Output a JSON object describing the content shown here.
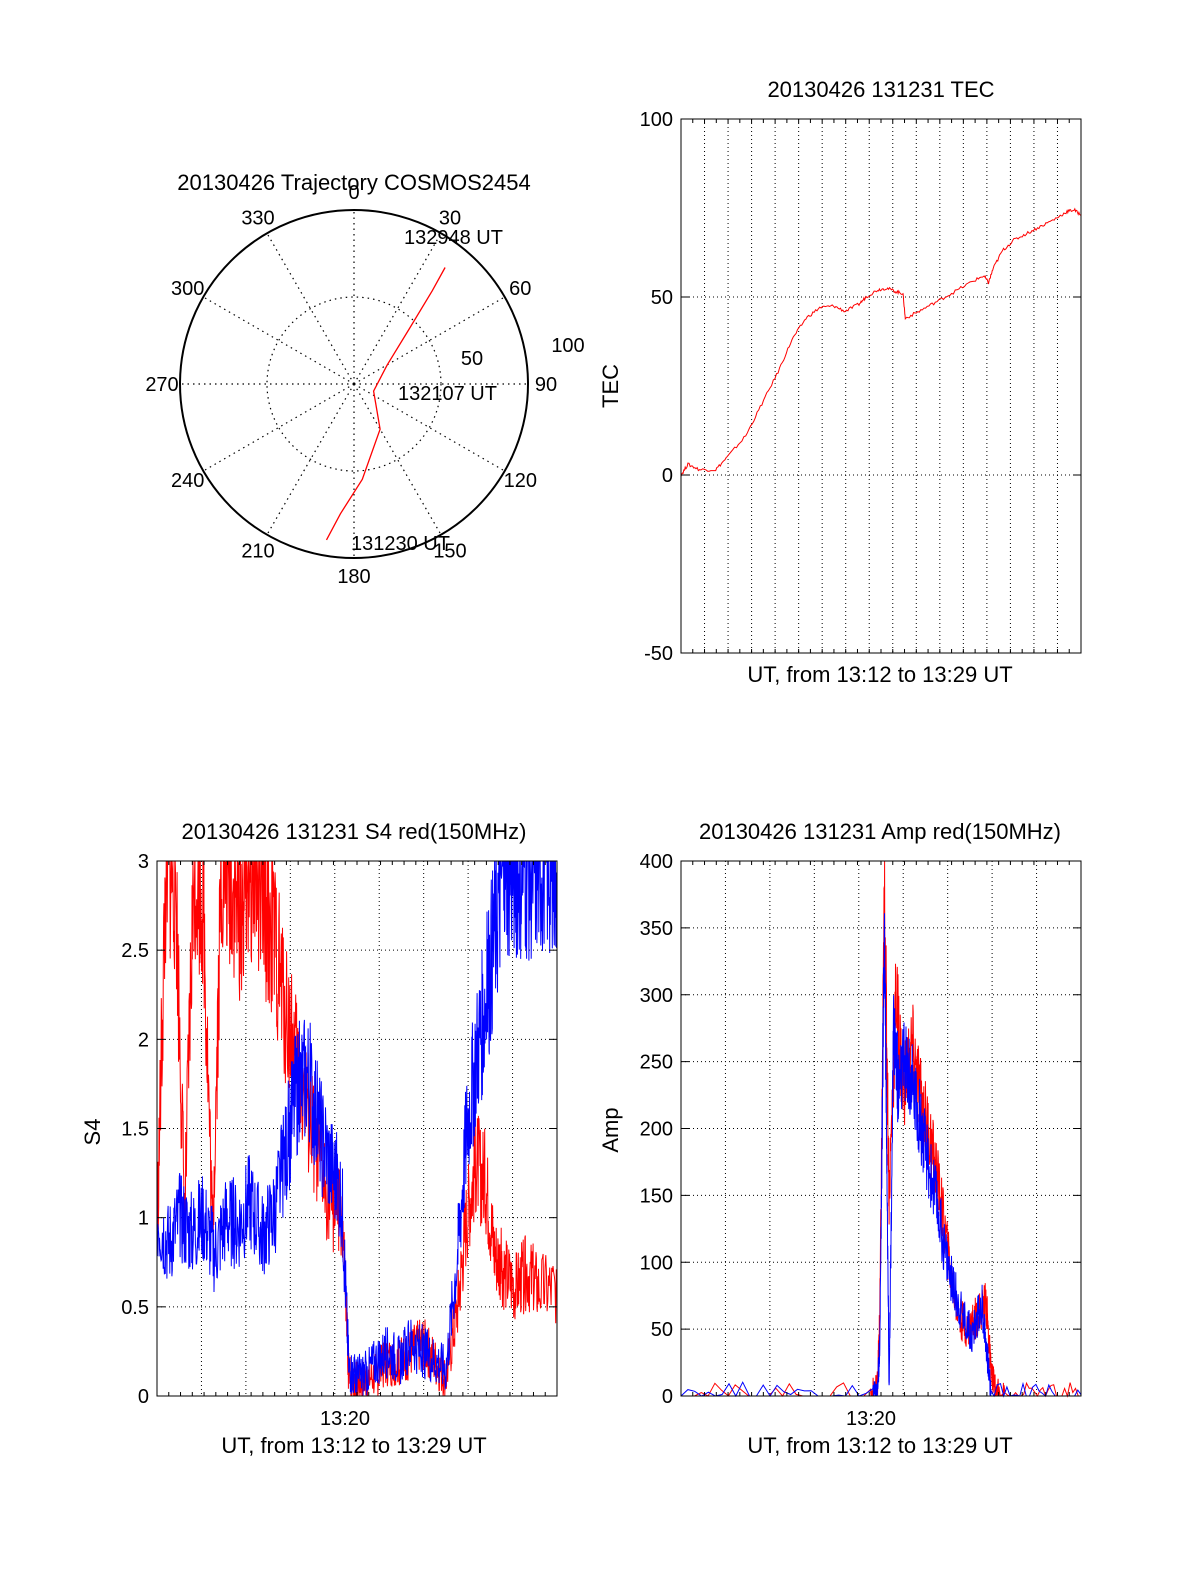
{
  "colors": {
    "red": "#ff0000",
    "blue": "#0000ff",
    "axis": "#000000",
    "grid": "#000000"
  },
  "chart_data": [
    {
      "id": "trajectory",
      "type": "polar",
      "title": "20130426 Trajectory COSMOS2454",
      "azimuth_labels": [
        "0",
        "30",
        "60",
        "90",
        "120",
        "150",
        "180",
        "210",
        "240",
        "270",
        "300",
        "330"
      ],
      "radius_labels": [
        "50",
        "100"
      ],
      "rlim": [
        0,
        100
      ],
      "grid": true,
      "series": [
        {
          "color": "#ff0000",
          "points": [
            [
              190,
              91
            ],
            [
              186,
              75
            ],
            [
              175,
              55
            ],
            [
              150,
              30
            ],
            [
              110,
              12
            ],
            [
              60,
              22
            ],
            [
              45,
              45
            ],
            [
              40,
              70
            ],
            [
              38,
              85
            ]
          ]
        }
      ],
      "annotations": [
        {
          "text": "132948 UT",
          "azimuth": 29,
          "radius": 84
        },
        {
          "text": "132107 UT",
          "azimuth": 84,
          "radius": 30
        },
        {
          "text": "131230 UT",
          "azimuth": 163,
          "radius": 96
        }
      ]
    },
    {
      "id": "tec",
      "type": "line",
      "title": "20130426 131231 TEC",
      "ylabel": "TEC",
      "xlabel": "UT, from 13:12 to 13:29 UT",
      "ylim": [
        -50,
        100
      ],
      "yticks": [
        "-50",
        "0",
        "50",
        "100"
      ],
      "xlim": [
        0,
        17.3
      ],
      "grid": true,
      "series": [
        {
          "color": "#ff0000",
          "x": [
            0,
            0.3,
            0.8,
            1.5,
            2.0,
            2.8,
            3.5,
            4.2,
            4.8,
            5.4,
            6.0,
            6.6,
            7.1,
            7.7,
            8.0,
            8.5,
            8.9,
            9.3,
            9.6,
            9.7,
            10.3,
            11.0,
            11.7,
            12.5,
            13.1,
            13.3,
            13.5,
            13.9,
            14.4,
            15.0,
            15.6,
            16.2,
            16.7,
            17.0,
            17.3
          ],
          "y": [
            0,
            3,
            1.5,
            1.5,
            5,
            11,
            20,
            29,
            38,
            44,
            47,
            47.5,
            46,
            48,
            50,
            52,
            52.5,
            51.5,
            51,
            44,
            46,
            48.5,
            51,
            54,
            56,
            54,
            58,
            63,
            66,
            68,
            70,
            72,
            74,
            74.5,
            73
          ]
        }
      ]
    },
    {
      "id": "s4",
      "type": "line",
      "title": "20130426 131231 S4 red(150MHz)",
      "ylabel": "S4",
      "xlabel": "UT, from 13:12 to 13:29 UT",
      "ylim": [
        0,
        3
      ],
      "yticks": [
        "0",
        "0.5",
        "1",
        "1.5",
        "2",
        "2.5",
        "3"
      ],
      "xtick_label": "13:20",
      "xlim": [
        0,
        17.3
      ],
      "grid": true,
      "series": [
        {
          "color": "#ff0000",
          "x": [
            0,
            0.4,
            0.8,
            1.2,
            1.6,
            2.0,
            2.4,
            2.8,
            3.2,
            3.6,
            4.0,
            4.5,
            5.0,
            5.5,
            6.0,
            6.5,
            7.0,
            7.5,
            8.0,
            8.3,
            8.6,
            9.0,
            9.5,
            10.0,
            10.5,
            11.0,
            11.5,
            12.0,
            12.5,
            13.0,
            13.4,
            13.8,
            14.2,
            14.6,
            15.0,
            15.5,
            16.0,
            16.5,
            17.3
          ],
          "y": [
            0.9,
            3,
            2.9,
            1.0,
            3,
            2.8,
            0.9,
            3,
            2.9,
            2.7,
            3,
            2.8,
            2.6,
            2.2,
            1.9,
            1.6,
            1.3,
            1.1,
            1.0,
            0.1,
            0.08,
            0.1,
            0.12,
            0.2,
            0.18,
            0.25,
            0.3,
            0.2,
            0.1,
            0.5,
            1.0,
            1.3,
            1.2,
            0.8,
            0.7,
            0.6,
            0.7,
            0.6,
            0.6
          ]
        },
        {
          "color": "#0000ff",
          "x": [
            0,
            0.5,
            1.0,
            1.5,
            2.0,
            2.5,
            3.0,
            3.5,
            4.0,
            4.5,
            5.0,
            5.5,
            6.0,
            6.5,
            7.0,
            7.5,
            8.0,
            8.3,
            8.6,
            9.0,
            9.5,
            10.0,
            10.5,
            11.0,
            11.5,
            12.0,
            12.5,
            13.0,
            13.4,
            13.8,
            14.2,
            14.6,
            15.0,
            15.4,
            15.8,
            16.2,
            16.6,
            17.0,
            17.3
          ],
          "y": [
            1.0,
            0.85,
            1.0,
            0.9,
            1.0,
            0.8,
            1.0,
            0.95,
            1.1,
            0.9,
            1.0,
            1.3,
            1.7,
            1.8,
            1.5,
            1.3,
            1.1,
            0.15,
            0.1,
            0.12,
            0.2,
            0.25,
            0.2,
            0.3,
            0.25,
            0.2,
            0.15,
            0.8,
            1.5,
            1.9,
            2.2,
            2.6,
            3,
            3,
            3,
            3,
            3,
            3,
            3
          ]
        }
      ]
    },
    {
      "id": "amp",
      "type": "line",
      "title": "20130426 131231 Amp red(150MHz)",
      "ylabel": "Amp",
      "xlabel": "UT, from 13:12 to 13:29 UT",
      "ylim": [
        0,
        400
      ],
      "yticks": [
        "0",
        "50",
        "100",
        "150",
        "200",
        "250",
        "300",
        "350",
        "400"
      ],
      "xtick_label": "13:20",
      "xlim": [
        0,
        17.3
      ],
      "grid": true,
      "series": [
        {
          "color": "#ff0000",
          "x": [
            0,
            8.2,
            8.5,
            8.6,
            8.8,
            9.0,
            9.3,
            9.6,
            10.0,
            10.4,
            10.8,
            11.2,
            11.6,
            12.0,
            12.4,
            12.8,
            13.2,
            13.4,
            13.6,
            14.0,
            17.3
          ],
          "y": [
            0,
            0,
            10,
            60,
            380,
            150,
            300,
            230,
            260,
            220,
            190,
            150,
            100,
            60,
            50,
            60,
            70,
            20,
            5,
            0,
            0
          ]
        },
        {
          "color": "#0000ff",
          "x": [
            0,
            8.3,
            8.5,
            8.6,
            8.8,
            9.0,
            9.2,
            9.4,
            9.7,
            10.0,
            10.3,
            10.6,
            11.0,
            11.4,
            11.8,
            12.2,
            12.6,
            13.0,
            13.2,
            13.4,
            17.3
          ],
          "y": [
            1,
            1,
            5,
            40,
            360,
            10,
            280,
            230,
            250,
            230,
            210,
            180,
            150,
            110,
            80,
            60,
            45,
            70,
            40,
            3,
            1
          ]
        }
      ]
    }
  ]
}
